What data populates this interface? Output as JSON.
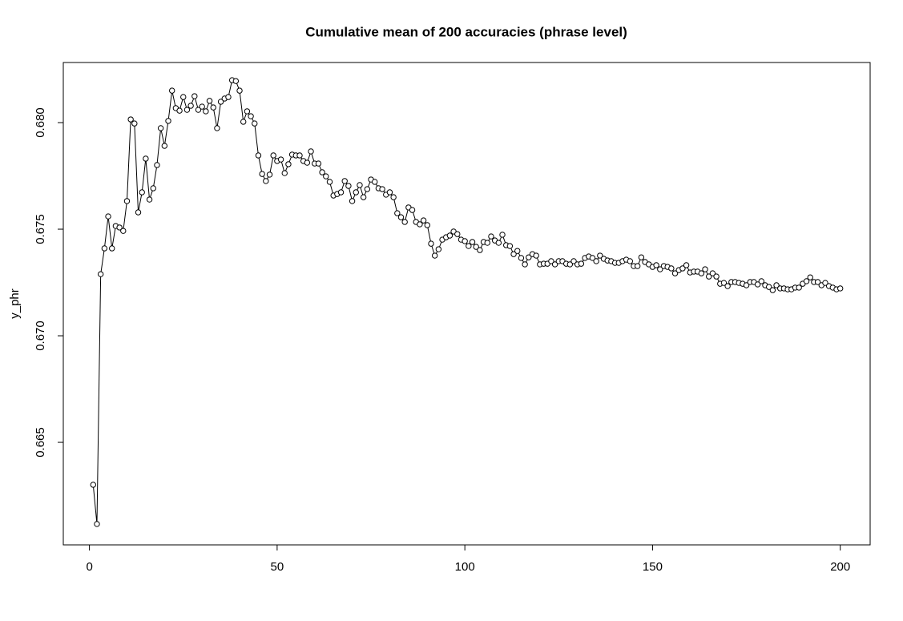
{
  "chart_data": {
    "type": "line",
    "title": "Cumulative mean of 200 accuracies (phrase level)",
    "y_label": "y_phr",
    "x": [
      1,
      2,
      3,
      4,
      5,
      6,
      7,
      8,
      9,
      10,
      11,
      12,
      13,
      14,
      15,
      16,
      17,
      18,
      19,
      20,
      21,
      22,
      23,
      24,
      25,
      26,
      27,
      28,
      29,
      30,
      31,
      32,
      33,
      34,
      35,
      36,
      37,
      38,
      39,
      40,
      41,
      42,
      43,
      44,
      45,
      46,
      47,
      48,
      49,
      50,
      51,
      52,
      53,
      54,
      55,
      56,
      57,
      58,
      59,
      60,
      61,
      62,
      63,
      64,
      65,
      66,
      67,
      68,
      69,
      70,
      71,
      72,
      73,
      74,
      75,
      76,
      77,
      78,
      79,
      80,
      81,
      82,
      83,
      84,
      85,
      86,
      87,
      88,
      89,
      90,
      91,
      92,
      93,
      94,
      95,
      96,
      97,
      98,
      99,
      100,
      101,
      102,
      103,
      104,
      105,
      106,
      107,
      108,
      109,
      110,
      111,
      112,
      113,
      114,
      115,
      116,
      117,
      118,
      119,
      120,
      121,
      122,
      123,
      124,
      125,
      126,
      127,
      128,
      129,
      130,
      131,
      132,
      133,
      134,
      135,
      136,
      137,
      138,
      139,
      140,
      141,
      142,
      143,
      144,
      145,
      146,
      147,
      148,
      149,
      150,
      151,
      152,
      153,
      154,
      155,
      156,
      157,
      158,
      159,
      160,
      161,
      162,
      163,
      164,
      165,
      166,
      167,
      168,
      169,
      170,
      171,
      172,
      173,
      174,
      175,
      176,
      177,
      178,
      179,
      180,
      181,
      182,
      183,
      184,
      185,
      186,
      187,
      188,
      189,
      190,
      191,
      192,
      193,
      194,
      195,
      196,
      197,
      198,
      199,
      200
    ],
    "series": [
      {
        "color": "#000000",
        "values": [
          0.66301,
          0.66117,
          0.67289,
          0.6741,
          0.6756,
          0.6741,
          0.67515,
          0.67508,
          0.67492,
          0.67632,
          0.68015,
          0.67996,
          0.67579,
          0.67673,
          0.67831,
          0.67639,
          0.67692,
          0.67801,
          0.67974,
          0.67891,
          0.68008,
          0.6815,
          0.68068,
          0.68056,
          0.6812,
          0.6806,
          0.68079,
          0.68124,
          0.6806,
          0.68075,
          0.68053,
          0.68102,
          0.68071,
          0.67974,
          0.68098,
          0.68113,
          0.6812,
          0.68199,
          0.68195,
          0.6815,
          0.68004,
          0.68053,
          0.6803,
          0.67996,
          0.67846,
          0.67759,
          0.67726,
          0.67756,
          0.67846,
          0.6782,
          0.67827,
          0.67763,
          0.67805,
          0.6785,
          0.67846,
          0.67846,
          0.6782,
          0.67812,
          0.67865,
          0.67808,
          0.67808,
          0.67767,
          0.67748,
          0.67722,
          0.67658,
          0.67665,
          0.67673,
          0.67726,
          0.67703,
          0.67632,
          0.67673,
          0.67707,
          0.6765,
          0.67688,
          0.67733,
          0.67722,
          0.67692,
          0.67688,
          0.67662,
          0.67673,
          0.6765,
          0.67575,
          0.67556,
          0.67534,
          0.67602,
          0.6759,
          0.67534,
          0.67523,
          0.67541,
          0.67519,
          0.67432,
          0.67376,
          0.67406,
          0.67451,
          0.67462,
          0.6747,
          0.67489,
          0.67477,
          0.67451,
          0.67444,
          0.67421,
          0.6744,
          0.67417,
          0.67402,
          0.6744,
          0.67436,
          0.67466,
          0.67447,
          0.67436,
          0.67474,
          0.67425,
          0.67421,
          0.67383,
          0.67398,
          0.67365,
          0.67335,
          0.67368,
          0.67383,
          0.67376,
          0.67335,
          0.67338,
          0.67338,
          0.6735,
          0.67335,
          0.6735,
          0.6735,
          0.67338,
          0.67335,
          0.6735,
          0.67335,
          0.67338,
          0.67365,
          0.67372,
          0.67365,
          0.6735,
          0.67376,
          0.67361,
          0.67353,
          0.6735,
          0.67342,
          0.67342,
          0.6735,
          0.67357,
          0.6735,
          0.67327,
          0.67327,
          0.67368,
          0.67346,
          0.67335,
          0.67323,
          0.67331,
          0.67312,
          0.67327,
          0.67323,
          0.67316,
          0.67293,
          0.67308,
          0.67316,
          0.67331,
          0.67297,
          0.67301,
          0.67301,
          0.67293,
          0.67312,
          0.67278,
          0.67293,
          0.67278,
          0.67244,
          0.67248,
          0.67233,
          0.67252,
          0.67252,
          0.67248,
          0.67244,
          0.67237,
          0.67252,
          0.67252,
          0.67241,
          0.67256,
          0.67237,
          0.67229,
          0.67214,
          0.67237,
          0.67222,
          0.67222,
          0.67218,
          0.67218,
          0.67226,
          0.67226,
          0.67244,
          0.67256,
          0.67274,
          0.67252,
          0.67252,
          0.67237,
          0.67248,
          0.67233,
          0.67226,
          0.67218,
          0.67222
        ]
      }
    ],
    "xlim": [
      -6.96,
      207.96
    ],
    "xticks": [
      0,
      50,
      100,
      150,
      200
    ],
    "ylim": [
      0.66019,
      0.68282
    ],
    "yticks": [
      0.665,
      {
        "value": 0.67,
        "label": "0.670"
      },
      0.675,
      {
        "value": 0.68,
        "label": "0.680"
      }
    ]
  }
}
